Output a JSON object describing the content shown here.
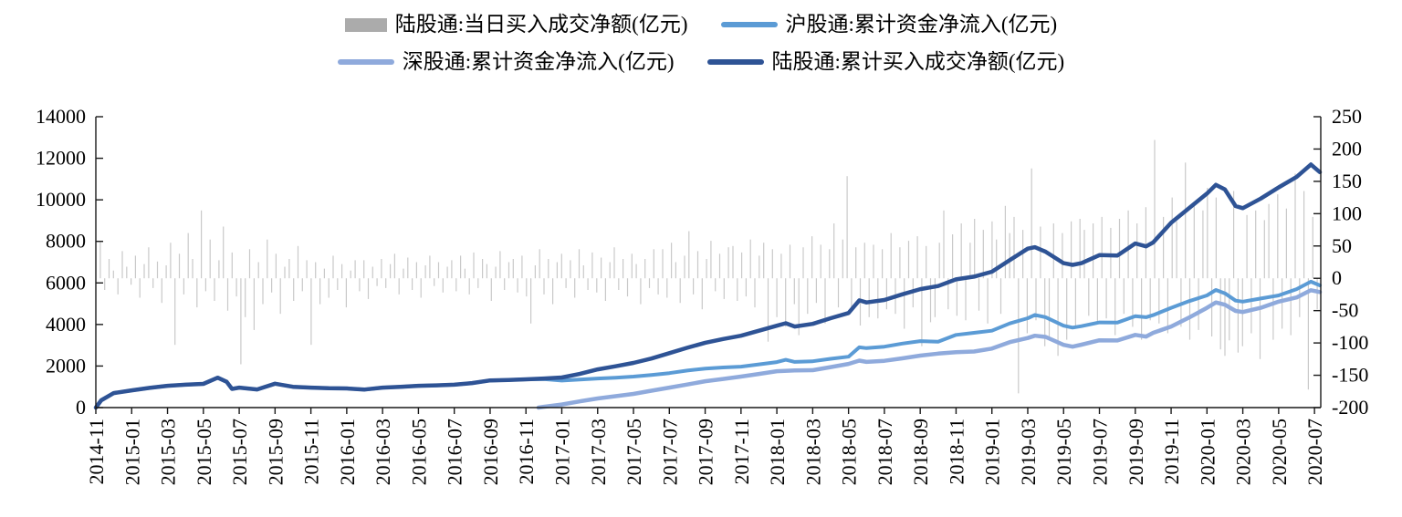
{
  "legend": {
    "items": [
      {
        "label": "陆股通:当日买入成交净额(亿元)",
        "swatch": "bar",
        "color": "#ababab"
      },
      {
        "label": "沪股通:累计资金净流入(亿元)",
        "swatch": "line",
        "color": "#5b9bd5"
      },
      {
        "label": "深股通:累计资金净流入(亿元)",
        "swatch": "line",
        "color": "#8faadc"
      },
      {
        "label": "陆股通:累计买入成交净额(亿元)",
        "swatch": "line",
        "color": "#2e5395"
      }
    ]
  },
  "chart_data": {
    "type": "combo",
    "title": "",
    "xlabel": "",
    "ylabel_left": "",
    "ylabel_right": "",
    "grid": false,
    "legend_position": "top",
    "x_axis": {
      "start": "2014-11",
      "end": "2020-07",
      "months_per_tick": 2,
      "tick_labels": [
        "2014-11",
        "2015-01",
        "2015-03",
        "2015-05",
        "2015-07",
        "2015-09",
        "2015-11",
        "2016-01",
        "2016-03",
        "2016-05",
        "2016-07",
        "2016-09",
        "2016-11",
        "2017-01",
        "2017-03",
        "2017-05",
        "2017-07",
        "2017-09",
        "2017-11",
        "2018-01",
        "2018-03",
        "2018-05",
        "2018-07",
        "2018-09",
        "2018-11",
        "2019-01",
        "2019-03",
        "2019-05",
        "2019-07",
        "2019-09",
        "2019-11",
        "2020-01",
        "2020-03",
        "2020-05",
        "2020-07"
      ]
    },
    "left_axis": {
      "min": 0,
      "max": 14000,
      "step": 2000,
      "tick_labels": [
        "0",
        "2000",
        "4000",
        "6000",
        "8000",
        "10000",
        "12000",
        "14000"
      ]
    },
    "right_axis": {
      "min": -200,
      "max": 250,
      "step": 50,
      "tick_labels": [
        "-200",
        "-150",
        "-100",
        "-50",
        "0",
        "50",
        "100",
        "150",
        "200",
        "250"
      ]
    },
    "axis_color": "#1a1a1a",
    "series": [
      {
        "name": "陆股通:当日买入成交净额(亿元)",
        "type": "bar",
        "axis": "right",
        "color": "#c9c9c9",
        "unit": "亿元",
        "values": [
          56,
          -18,
          30,
          12,
          -25,
          42,
          18,
          -10,
          35,
          -30,
          22,
          48,
          -15,
          26,
          -38,
          20,
          55,
          -103,
          38,
          -25,
          70,
          30,
          -45,
          105,
          -20,
          60,
          -35,
          28,
          80,
          -50,
          40,
          -28,
          -133,
          -60,
          45,
          -80,
          25,
          -40,
          60,
          -22,
          38,
          -55,
          18,
          30,
          -35,
          50,
          -20,
          28,
          -103,
          25,
          -40,
          15,
          -30,
          35,
          -18,
          22,
          -45,
          12,
          28,
          -20,
          28,
          -32,
          18,
          -12,
          30,
          -15,
          22,
          38,
          -25,
          15,
          32,
          -18,
          25,
          -30,
          20,
          35,
          -12,
          25,
          -22,
          18,
          28,
          -20,
          35,
          15,
          -25,
          40,
          -15,
          30,
          22,
          -35,
          18,
          42,
          -18,
          25,
          30,
          -22,
          35,
          -28,
          -70,
          20,
          45,
          -25,
          30,
          -40,
          25,
          38,
          -15,
          28,
          -30,
          45,
          20,
          -18,
          40,
          -22,
          32,
          -35,
          25,
          48,
          -18,
          30,
          -28,
          38,
          22,
          -40,
          30,
          -15,
          45,
          -25,
          45,
          -30,
          55,
          25,
          -38,
          35,
          73,
          -25,
          42,
          -48,
          30,
          58,
          -20,
          38,
          -32,
          48,
          50,
          -35,
          40,
          -28,
          60,
          -45,
          35,
          55,
          -98,
          45,
          -60,
          38,
          -75,
          52,
          -40,
          -88,
          48,
          -55,
          65,
          -38,
          52,
          -70,
          45,
          85,
          -45,
          60,
          158,
          -52,
          48,
          -73,
          55,
          -60,
          52,
          -62,
          45,
          -48,
          70,
          -55,
          48,
          -78,
          58,
          -45,
          65,
          -105,
          50,
          -68,
          -60,
          55,
          105,
          -48,
          68,
          -58,
          85,
          -65,
          55,
          92,
          -50,
          75,
          -70,
          88,
          60,
          -55,
          112,
          70,
          95,
          -178,
          75,
          -85,
          170,
          -65,
          80,
          -105,
          -90,
          85,
          -120,
          70,
          -95,
          88,
          -75,
          92,
          75,
          -58,
          85,
          -70,
          95,
          -62,
          78,
          -88,
          92,
          -55,
          105,
          -75,
          85,
          -95,
          110,
          -65,
          214,
          -70,
          95,
          -85,
          125,
          88,
          -75,
          179,
          -95,
          115,
          -80,
          105,
          140,
          -90,
          125,
          -110,
          -120,
          -96,
          135,
          -115,
          -105,
          98,
          -85,
          105,
          -125,
          90,
          115,
          -95,
          130,
          -78,
          108,
          -88,
          162,
          -60,
          135,
          -172,
          95,
          -48
        ]
      },
      {
        "name": "沪股通:累计资金净流入(亿元)",
        "type": "line",
        "axis": "left",
        "color": "#5b9bd5",
        "width": 4,
        "unit": "亿元",
        "points": [
          [
            0,
            0
          ],
          [
            0.3,
            350
          ],
          [
            1,
            700
          ],
          [
            2,
            830
          ],
          [
            3,
            950
          ],
          [
            4,
            1050
          ],
          [
            5,
            1100
          ],
          [
            6,
            1140
          ],
          [
            6.8,
            1440
          ],
          [
            7.3,
            1240
          ],
          [
            7.6,
            900
          ],
          [
            8,
            960
          ],
          [
            9,
            875
          ],
          [
            10,
            1150
          ],
          [
            11,
            1000
          ],
          [
            12,
            960
          ],
          [
            13,
            930
          ],
          [
            14,
            920
          ],
          [
            15,
            870
          ],
          [
            16,
            960
          ],
          [
            17,
            1000
          ],
          [
            18,
            1050
          ],
          [
            19,
            1070
          ],
          [
            20,
            1100
          ],
          [
            21,
            1180
          ],
          [
            22,
            1310
          ],
          [
            23,
            1330
          ],
          [
            24,
            1360
          ],
          [
            25,
            1370
          ],
          [
            26,
            1300
          ],
          [
            27,
            1350
          ],
          [
            28,
            1400
          ],
          [
            29,
            1440
          ],
          [
            30,
            1490
          ],
          [
            31,
            1570
          ],
          [
            32,
            1660
          ],
          [
            33,
            1780
          ],
          [
            34,
            1880
          ],
          [
            35,
            1930
          ],
          [
            36,
            1970
          ],
          [
            37,
            2080
          ],
          [
            38,
            2190
          ],
          [
            38.5,
            2300
          ],
          [
            39,
            2200
          ],
          [
            40,
            2230
          ],
          [
            41,
            2350
          ],
          [
            42,
            2450
          ],
          [
            42.6,
            2900
          ],
          [
            43,
            2860
          ],
          [
            44,
            2930
          ],
          [
            45,
            3080
          ],
          [
            46,
            3200
          ],
          [
            47,
            3170
          ],
          [
            48,
            3500
          ],
          [
            49,
            3600
          ],
          [
            50,
            3700
          ],
          [
            51,
            4050
          ],
          [
            52,
            4300
          ],
          [
            52.4,
            4460
          ],
          [
            53,
            4350
          ],
          [
            54,
            3940
          ],
          [
            54.5,
            3850
          ],
          [
            55,
            3920
          ],
          [
            56,
            4100
          ],
          [
            57,
            4090
          ],
          [
            58,
            4400
          ],
          [
            58.6,
            4350
          ],
          [
            59,
            4450
          ],
          [
            60,
            4800
          ],
          [
            61,
            5120
          ],
          [
            62,
            5400
          ],
          [
            62.5,
            5660
          ],
          [
            63,
            5500
          ],
          [
            63.6,
            5150
          ],
          [
            64,
            5100
          ],
          [
            65,
            5250
          ],
          [
            66,
            5400
          ],
          [
            67,
            5700
          ],
          [
            67.8,
            6060
          ],
          [
            68.3,
            5880
          ]
        ]
      },
      {
        "name": "深股通:累计资金净流入(亿元)",
        "type": "line",
        "axis": "left",
        "color": "#8faadc",
        "width": 4.5,
        "unit": "亿元",
        "points": [
          [
            24.7,
            0
          ],
          [
            25,
            40
          ],
          [
            26,
            150
          ],
          [
            27,
            300
          ],
          [
            28,
            440
          ],
          [
            29,
            550
          ],
          [
            30,
            660
          ],
          [
            31,
            810
          ],
          [
            32,
            960
          ],
          [
            33,
            1110
          ],
          [
            34,
            1270
          ],
          [
            35,
            1380
          ],
          [
            36,
            1490
          ],
          [
            37,
            1620
          ],
          [
            38,
            1750
          ],
          [
            39,
            1790
          ],
          [
            40,
            1800
          ],
          [
            41,
            1950
          ],
          [
            42,
            2100
          ],
          [
            42.6,
            2260
          ],
          [
            43,
            2200
          ],
          [
            44,
            2250
          ],
          [
            45,
            2370
          ],
          [
            46,
            2500
          ],
          [
            47,
            2600
          ],
          [
            48,
            2670
          ],
          [
            49,
            2700
          ],
          [
            50,
            2840
          ],
          [
            51,
            3150
          ],
          [
            52,
            3350
          ],
          [
            52.4,
            3460
          ],
          [
            53,
            3400
          ],
          [
            54,
            3020
          ],
          [
            54.5,
            2930
          ],
          [
            55,
            3030
          ],
          [
            56,
            3240
          ],
          [
            57,
            3230
          ],
          [
            58,
            3500
          ],
          [
            58.6,
            3420
          ],
          [
            59,
            3600
          ],
          [
            60,
            3900
          ],
          [
            61,
            4330
          ],
          [
            62,
            4800
          ],
          [
            62.5,
            5060
          ],
          [
            63,
            4950
          ],
          [
            63.6,
            4650
          ],
          [
            64,
            4600
          ],
          [
            65,
            4800
          ],
          [
            66,
            5100
          ],
          [
            67,
            5300
          ],
          [
            67.8,
            5650
          ],
          [
            68.3,
            5560
          ]
        ]
      },
      {
        "name": "陆股通:累计买入成交净额(亿元)",
        "type": "line",
        "axis": "left",
        "color": "#2e5395",
        "width": 4.5,
        "unit": "亿元",
        "points": [
          [
            0,
            0
          ],
          [
            0.3,
            350
          ],
          [
            1,
            700
          ],
          [
            2,
            830
          ],
          [
            3,
            950
          ],
          [
            4,
            1050
          ],
          [
            5,
            1100
          ],
          [
            6,
            1140
          ],
          [
            6.8,
            1440
          ],
          [
            7.3,
            1240
          ],
          [
            7.6,
            900
          ],
          [
            8,
            960
          ],
          [
            9,
            875
          ],
          [
            10,
            1150
          ],
          [
            11,
            1000
          ],
          [
            12,
            960
          ],
          [
            13,
            930
          ],
          [
            14,
            920
          ],
          [
            15,
            870
          ],
          [
            16,
            960
          ],
          [
            17,
            1000
          ],
          [
            18,
            1050
          ],
          [
            19,
            1070
          ],
          [
            20,
            1100
          ],
          [
            21,
            1180
          ],
          [
            22,
            1310
          ],
          [
            23,
            1330
          ],
          [
            24,
            1360
          ],
          [
            25,
            1400
          ],
          [
            26,
            1450
          ],
          [
            27,
            1620
          ],
          [
            28,
            1840
          ],
          [
            29,
            1990
          ],
          [
            30,
            2150
          ],
          [
            31,
            2360
          ],
          [
            32,
            2620
          ],
          [
            33,
            2880
          ],
          [
            34,
            3120
          ],
          [
            35,
            3300
          ],
          [
            36,
            3460
          ],
          [
            37,
            3700
          ],
          [
            38,
            3940
          ],
          [
            38.5,
            4060
          ],
          [
            39,
            3900
          ],
          [
            40,
            4030
          ],
          [
            41,
            4300
          ],
          [
            42,
            4550
          ],
          [
            42.6,
            5160
          ],
          [
            43,
            5060
          ],
          [
            44,
            5180
          ],
          [
            45,
            5450
          ],
          [
            46,
            5700
          ],
          [
            47,
            5850
          ],
          [
            48,
            6170
          ],
          [
            49,
            6300
          ],
          [
            50,
            6540
          ],
          [
            51,
            7100
          ],
          [
            52,
            7650
          ],
          [
            52.4,
            7720
          ],
          [
            53,
            7500
          ],
          [
            54,
            6950
          ],
          [
            54.5,
            6870
          ],
          [
            55,
            6950
          ],
          [
            56,
            7340
          ],
          [
            57,
            7320
          ],
          [
            58,
            7900
          ],
          [
            58.6,
            7760
          ],
          [
            59,
            7950
          ],
          [
            60,
            8900
          ],
          [
            61,
            9600
          ],
          [
            62,
            10300
          ],
          [
            62.5,
            10720
          ],
          [
            63,
            10500
          ],
          [
            63.6,
            9700
          ],
          [
            64,
            9600
          ],
          [
            65,
            10060
          ],
          [
            66,
            10600
          ],
          [
            67,
            11100
          ],
          [
            67.8,
            11700
          ],
          [
            68.3,
            11330
          ]
        ]
      }
    ]
  }
}
